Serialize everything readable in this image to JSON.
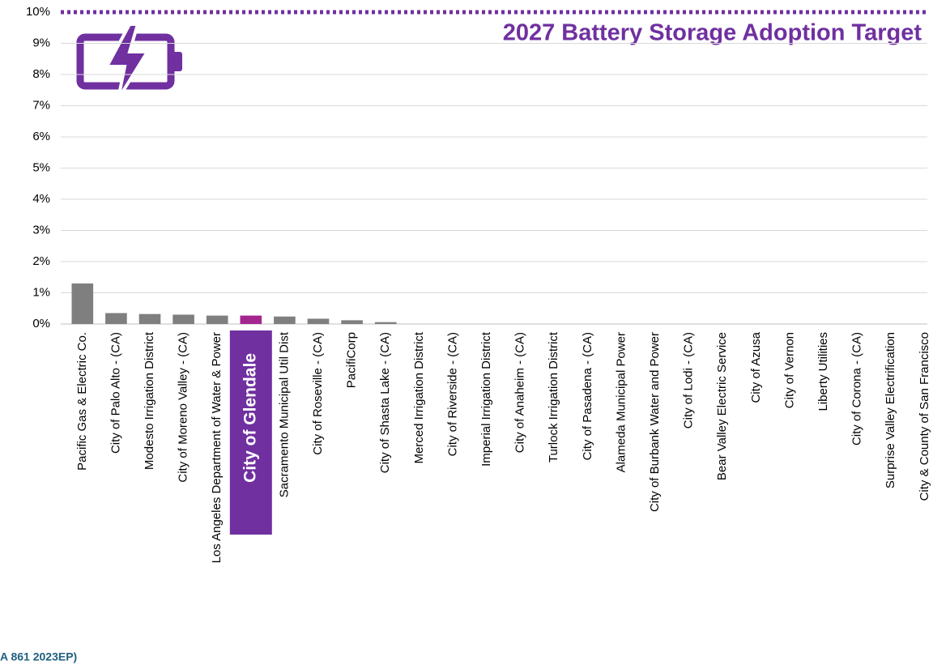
{
  "chart_data": {
    "type": "bar",
    "title": "2027 Battery Storage Adoption Target",
    "source": "A 861 2023EP)",
    "categories": [
      "Pacific Gas & Electric Co.",
      "City of Palo Alto - (CA)",
      "Modesto Irrigation District",
      "City of Moreno Valley - (CA)",
      "Los Angeles Department of Water & Power",
      "City of Glendale",
      "Sacramento Municipal Util Dist",
      "City of Roseville - (CA)",
      "PacifiCorp",
      "City of Shasta Lake - (CA)",
      "Merced Irrigation District",
      "City of Riverside - (CA)",
      "Imperial Irrigation District",
      "City of Anaheim - (CA)",
      "Turlock Irrigation District",
      "City of Pasadena - (CA)",
      "Alameda Municipal Power",
      "City of Burbank Water and Power",
      "City of Lodi - (CA)",
      "Bear Valley Electric Service",
      "City of Azusa",
      "City of Vernon",
      "Liberty Utilities",
      "City of Corona - (CA)",
      "Surprise Valley Electrification",
      "City & County of San Francisco"
    ],
    "values": [
      1.3,
      0.35,
      0.32,
      0.3,
      0.27,
      0.27,
      0.24,
      0.17,
      0.12,
      0.06,
      0,
      0,
      0,
      0,
      0,
      0,
      0,
      0,
      0,
      0,
      0,
      0,
      0,
      0,
      0,
      0
    ],
    "color": "#7f7f7f",
    "colors": [
      "#7f7f7f",
      "#7f7f7f",
      "#7f7f7f",
      "#7f7f7f",
      "#7f7f7f",
      "#a3268f",
      "#7f7f7f",
      "#7f7f7f",
      "#7f7f7f",
      "#7f7f7f",
      "#7f7f7f",
      "#7f7f7f",
      "#7f7f7f",
      "#7f7f7f",
      "#7f7f7f",
      "#7f7f7f",
      "#7f7f7f",
      "#7f7f7f",
      "#7f7f7f",
      "#7f7f7f",
      "#7f7f7f",
      "#7f7f7f",
      "#7f7f7f",
      "#7f7f7f",
      "#7f7f7f",
      "#7f7f7f"
    ],
    "target_line": {
      "value": 10,
      "color": "#7030a0"
    },
    "ylim": [
      0,
      10
    ],
    "yticks": [
      {
        "value": 0,
        "label": "0%"
      },
      {
        "value": 1,
        "label": "1%"
      },
      {
        "value": 2,
        "label": "2%"
      },
      {
        "value": 3,
        "label": "3%"
      },
      {
        "value": 4,
        "label": "4%"
      },
      {
        "value": 5,
        "label": "5%"
      },
      {
        "value": 6,
        "label": "6%"
      },
      {
        "value": 7,
        "label": "7%"
      },
      {
        "value": 8,
        "label": "8%"
      },
      {
        "value": 9,
        "label": "9%"
      },
      {
        "value": 10,
        "label": "10%"
      }
    ],
    "grid": true
  }
}
